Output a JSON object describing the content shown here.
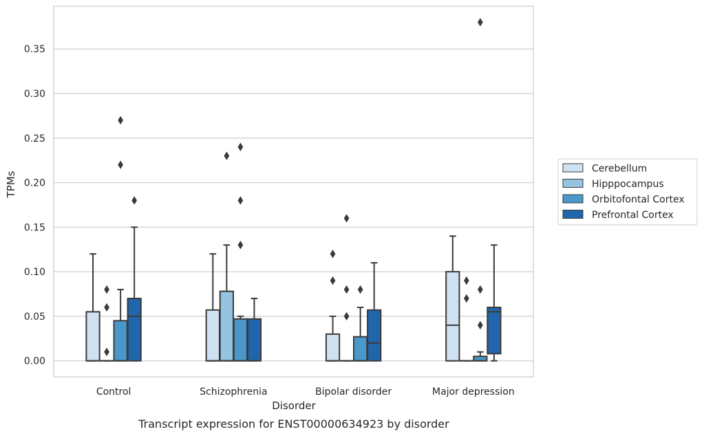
{
  "chart_data": {
    "type": "box",
    "title": "Transcript expression for ENST00000634923 by disorder",
    "xlabel": "Disorder",
    "ylabel": "TPMs",
    "ylim": [
      -0.018,
      0.398
    ],
    "yticks": [
      0.0,
      0.05,
      0.1,
      0.15,
      0.2,
      0.25,
      0.3,
      0.35
    ],
    "ytick_labels": [
      "0.00",
      "0.05",
      "0.10",
      "0.15",
      "0.20",
      "0.25",
      "0.30",
      "0.35"
    ],
    "grid": "horizontal",
    "legend_position": "right",
    "categories": [
      "Control",
      "Schizophrenia",
      "Bipolar disorder",
      "Major depression"
    ],
    "series": [
      {
        "name": "Cerebellum",
        "color": "#d0e1f2",
        "boxes": [
          {
            "q1": 0.0,
            "median": 0.0,
            "q3": 0.055,
            "whislo": 0.0,
            "whishi": 0.12,
            "fliers": []
          },
          {
            "q1": 0.0,
            "median": 0.0,
            "q3": 0.057,
            "whislo": 0.0,
            "whishi": 0.12,
            "fliers": []
          },
          {
            "q1": 0.0,
            "median": 0.0,
            "q3": 0.03,
            "whislo": 0.0,
            "whishi": 0.05,
            "fliers": [
              0.12,
              0.09
            ]
          },
          {
            "q1": 0.0,
            "median": 0.04,
            "q3": 0.1,
            "whislo": 0.0,
            "whishi": 0.14,
            "fliers": []
          }
        ]
      },
      {
        "name": "Hipppocampus",
        "color": "#94c4df",
        "boxes": [
          {
            "q1": 0.0,
            "median": 0.0,
            "q3": 0.0,
            "whislo": 0.0,
            "whishi": 0.0,
            "fliers": [
              0.08,
              0.06,
              0.01
            ]
          },
          {
            "q1": 0.0,
            "median": 0.0,
            "q3": 0.078,
            "whislo": 0.0,
            "whishi": 0.13,
            "fliers": [
              0.23
            ]
          },
          {
            "q1": 0.0,
            "median": 0.0,
            "q3": 0.0,
            "whislo": 0.0,
            "whishi": 0.0,
            "fliers": [
              0.16,
              0.08,
              0.05
            ]
          },
          {
            "q1": 0.0,
            "median": 0.0,
            "q3": 0.0,
            "whislo": 0.0,
            "whishi": 0.0,
            "fliers": [
              0.09,
              0.07
            ]
          }
        ]
      },
      {
        "name": "Orbitofontal Cortex",
        "color": "#4a98c9",
        "boxes": [
          {
            "q1": 0.0,
            "median": 0.0,
            "q3": 0.045,
            "whislo": 0.0,
            "whishi": 0.08,
            "fliers": [
              0.27,
              0.22
            ]
          },
          {
            "q1": 0.0,
            "median": 0.0,
            "q3": 0.047,
            "whislo": 0.0,
            "whishi": 0.05,
            "fliers": [
              0.24,
              0.18,
              0.13
            ]
          },
          {
            "q1": 0.0,
            "median": 0.0,
            "q3": 0.027,
            "whislo": 0.0,
            "whishi": 0.06,
            "fliers": [
              0.08
            ]
          },
          {
            "q1": 0.0,
            "median": 0.0,
            "q3": 0.005,
            "whislo": 0.0,
            "whishi": 0.01,
            "fliers": [
              0.38,
              0.08,
              0.04
            ]
          }
        ]
      },
      {
        "name": "Prefrontal Cortex",
        "color": "#2166ac",
        "boxes": [
          {
            "q1": 0.0,
            "median": 0.05,
            "q3": 0.07,
            "whislo": 0.0,
            "whishi": 0.15,
            "fliers": [
              0.18
            ]
          },
          {
            "q1": 0.0,
            "median": 0.0,
            "q3": 0.047,
            "whislo": 0.0,
            "whishi": 0.07,
            "fliers": []
          },
          {
            "q1": 0.0,
            "median": 0.02,
            "q3": 0.057,
            "whislo": 0.0,
            "whishi": 0.11,
            "fliers": []
          },
          {
            "q1": 0.008,
            "median": 0.055,
            "q3": 0.06,
            "whislo": 0.0,
            "whishi": 0.13,
            "fliers": []
          }
        ]
      }
    ],
    "colors": {
      "grid": "#cccccc",
      "spine": "#cccccc",
      "line": "#3a3a3a",
      "text": "#262626"
    }
  }
}
